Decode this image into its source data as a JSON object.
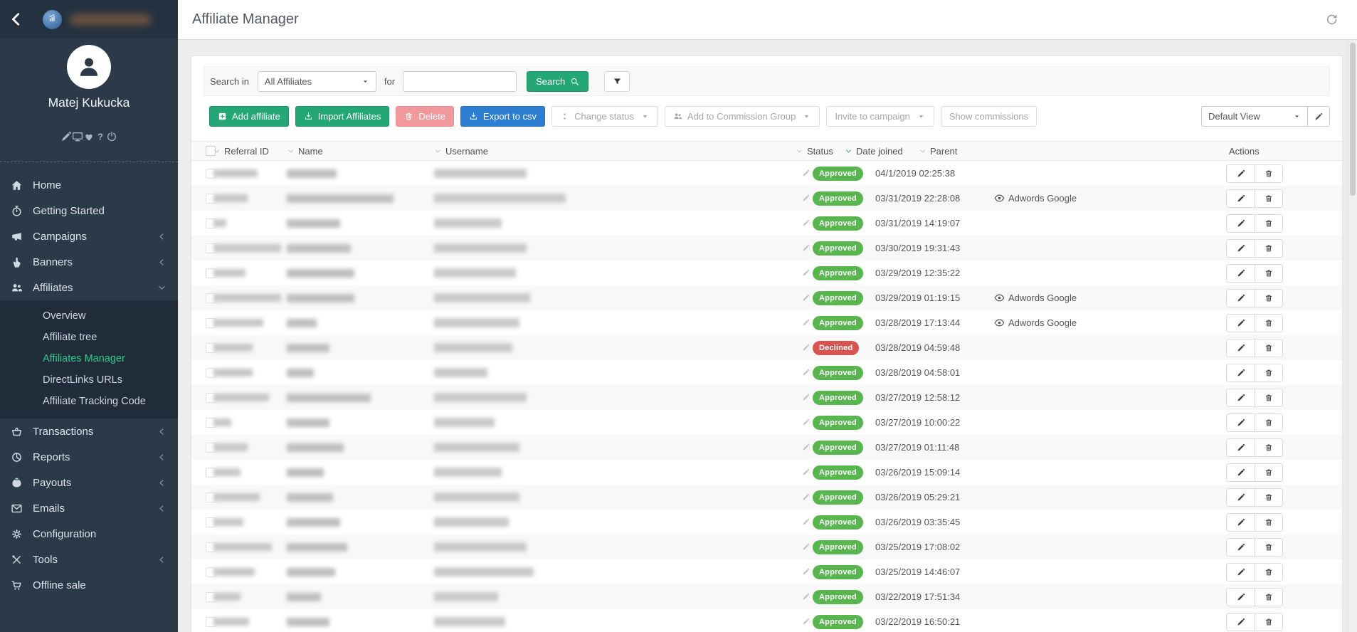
{
  "colors": {
    "accent_green": "#23a776",
    "export_blue": "#2d7dd2",
    "delete_pink": "#f1989c",
    "approved_green": "#57b64e",
    "declined_red": "#d9534f",
    "sidebar_active_green": "#2ecc8e"
  },
  "sidebar": {
    "back_icon": "chevron-back",
    "logo_icon": "chart-logo",
    "user_name": "Matej Kukucka",
    "quick_icons": [
      "pencil",
      "monitor",
      "heartbeat",
      "question",
      "power"
    ],
    "nav": [
      {
        "label": "Home",
        "icon": "home"
      },
      {
        "label": "Getting Started",
        "icon": "stopwatch"
      },
      {
        "label": "Campaigns",
        "icon": "megaphone",
        "chevron": "left"
      },
      {
        "label": "Banners",
        "icon": "hand-pointer",
        "chevron": "left"
      },
      {
        "label": "Affiliates",
        "icon": "users",
        "chevron": "down",
        "active": true,
        "submenu": [
          {
            "label": "Overview"
          },
          {
            "label": "Affiliate tree"
          },
          {
            "label": "Affiliates Manager",
            "active": true
          },
          {
            "label": "DirectLinks URLs"
          },
          {
            "label": "Affiliate Tracking Code"
          }
        ]
      },
      {
        "label": "Transactions",
        "icon": "basket",
        "chevron": "left"
      },
      {
        "label": "Reports",
        "icon": "pie-chart",
        "chevron": "left"
      },
      {
        "label": "Payouts",
        "icon": "money-bag",
        "chevron": "left"
      },
      {
        "label": "Emails",
        "icon": "envelope",
        "chevron": "left"
      },
      {
        "label": "Configuration",
        "icon": "gear"
      },
      {
        "label": "Tools",
        "icon": "tools",
        "chevron": "left"
      },
      {
        "label": "Offline sale",
        "icon": "cart"
      }
    ]
  },
  "header": {
    "title": "Affiliate Manager",
    "refresh_icon": "refresh"
  },
  "search": {
    "label": "Search in",
    "scope_value": "All Affiliates",
    "for_label": "for",
    "query_value": "",
    "query_placeholder": "",
    "button_label": "Search",
    "button_icon": "search",
    "filter_icon": "funnel"
  },
  "toolbar": {
    "buttons": [
      {
        "label": "Add affiliate",
        "icon": "plus-square",
        "style": "green"
      },
      {
        "label": "Import Affiliates",
        "icon": "download",
        "style": "green"
      },
      {
        "label": "Delete",
        "icon": "trash",
        "style": "danger"
      },
      {
        "label": "Export to csv",
        "icon": "download",
        "style": "blue"
      },
      {
        "label": "Change status",
        "icon": "sort",
        "caret": true,
        "style": "muted"
      },
      {
        "label": "Add to Commission Group",
        "icon": "users",
        "caret": true,
        "style": "muted"
      },
      {
        "label": "Invite to campaign",
        "caret": true,
        "style": "muted"
      },
      {
        "label": "Show commissions",
        "style": "muted"
      }
    ],
    "view_value": "Default View",
    "view_edit_icon": "pencil"
  },
  "table": {
    "columns": [
      {
        "label": "Referral ID",
        "sortable": true
      },
      {
        "label": "Name",
        "sortable": true
      },
      {
        "label": "Username",
        "sortable": true
      },
      {
        "label": "Status",
        "sortable": true
      },
      {
        "label": "Date joined",
        "sortable": true,
        "sorted": true
      },
      {
        "label": "Parent",
        "sortable": true
      },
      {
        "label": "Actions",
        "sortable": false
      }
    ],
    "status_values": {
      "approved": "Approved",
      "declined": "Declined"
    },
    "rows": [
      {
        "status": "Approved",
        "date": "04/1/2019 02:25:38",
        "parent": "",
        "blur": [
          62,
          70,
          130
        ]
      },
      {
        "status": "Approved",
        "date": "03/31/2019 22:28:08",
        "parent": "Adwords Google",
        "blur": [
          48,
          150,
          185
        ]
      },
      {
        "status": "Approved",
        "date": "03/31/2019 14:19:07",
        "parent": "",
        "blur": [
          18,
          75,
          95
        ]
      },
      {
        "status": "Approved",
        "date": "03/30/2019 19:31:43",
        "parent": "",
        "blur": [
          95,
          90,
          130
        ]
      },
      {
        "status": "Approved",
        "date": "03/29/2019 12:35:22",
        "parent": "",
        "blur": [
          45,
          95,
          115
        ]
      },
      {
        "status": "Approved",
        "date": "03/29/2019 01:19:15",
        "parent": "Adwords Google",
        "blur": [
          95,
          95,
          135
        ]
      },
      {
        "status": "Approved",
        "date": "03/28/2019 17:13:44",
        "parent": "Adwords Google",
        "blur": [
          70,
          42,
          120
        ]
      },
      {
        "status": "Declined",
        "date": "03/28/2019 04:59:48",
        "parent": "",
        "blur": [
          55,
          60,
          110
        ]
      },
      {
        "status": "Approved",
        "date": "03/28/2019 04:58:01",
        "parent": "",
        "blur": [
          55,
          38,
          75
        ]
      },
      {
        "status": "Approved",
        "date": "03/27/2019 12:58:12",
        "parent": "",
        "blur": [
          78,
          118,
          130
        ]
      },
      {
        "status": "Approved",
        "date": "03/27/2019 10:00:22",
        "parent": "",
        "blur": [
          25,
          60,
          85
        ]
      },
      {
        "status": "Approved",
        "date": "03/27/2019 01:11:48",
        "parent": "",
        "blur": [
          48,
          80,
          120
        ]
      },
      {
        "status": "Approved",
        "date": "03/26/2019 15:09:14",
        "parent": "",
        "blur": [
          38,
          52,
          95
        ]
      },
      {
        "status": "Approved",
        "date": "03/26/2019 05:29:21",
        "parent": "",
        "blur": [
          65,
          65,
          120
        ]
      },
      {
        "status": "Approved",
        "date": "03/26/2019 03:35:45",
        "parent": "",
        "blur": [
          42,
          75,
          105
        ]
      },
      {
        "status": "Approved",
        "date": "03/25/2019 17:08:02",
        "parent": "",
        "blur": [
          82,
          85,
          130
        ]
      },
      {
        "status": "Approved",
        "date": "03/25/2019 14:46:07",
        "parent": "",
        "blur": [
          58,
          68,
          140
        ]
      },
      {
        "status": "Approved",
        "date": "03/22/2019 17:51:34",
        "parent": "",
        "blur": [
          38,
          48,
          90
        ]
      },
      {
        "status": "Approved",
        "date": "03/22/2019 16:50:21",
        "parent": "",
        "blur": [
          50,
          60,
          100
        ]
      }
    ],
    "row_icons": {
      "status_edit": "pencil",
      "parent": "eye",
      "edit": "pencil",
      "delete": "trash"
    }
  }
}
